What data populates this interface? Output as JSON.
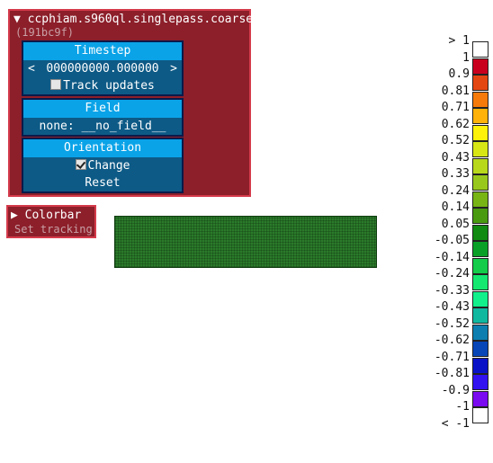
{
  "dataset_panel": {
    "title": "ccphiam.s960ql.singlepass.coarse",
    "id": "(191bc9f)",
    "expand_arrow": "▼",
    "timestep": {
      "title": "Timestep",
      "prev": "<",
      "value": "000000000.000000",
      "next": ">",
      "track_updates_label": "Track updates",
      "track_updates_checked": false
    },
    "field": {
      "title": "Field",
      "value": "none: __no_field__"
    },
    "orientation": {
      "title": "Orientation",
      "change_label": "Change",
      "change_checked": true,
      "reset_label": "Reset"
    }
  },
  "colorbar_panel": {
    "expand_arrow": "▶",
    "title": "Colorbar",
    "subtitle": "Set tracking"
  },
  "legend": {
    "labels": [
      "> 1",
      "1",
      "0.9",
      "0.81",
      "0.71",
      "0.62",
      "0.52",
      "0.43",
      "0.33",
      "0.24",
      "0.14",
      "0.05",
      "-0.05",
      "-0.14",
      "-0.24",
      "-0.33",
      "-0.43",
      "-0.52",
      "-0.62",
      "-0.71",
      "-0.81",
      "-0.9",
      "-1",
      "< -1"
    ],
    "colors": [
      "#ffffff",
      "#c8001e",
      "#e44612",
      "#f57a0a",
      "#ffb20a",
      "#fff20a",
      "#d7e614",
      "#b8d81c",
      "#98c81c",
      "#78b414",
      "#4a9a10",
      "#108a10",
      "#0aa028",
      "#12cc4a",
      "#14e870",
      "#12f08c",
      "#10b8a0",
      "#0c7eb0",
      "#0846b8",
      "#0a12c8",
      "#3212f0",
      "#7a0af0",
      "#ffffff"
    ]
  }
}
